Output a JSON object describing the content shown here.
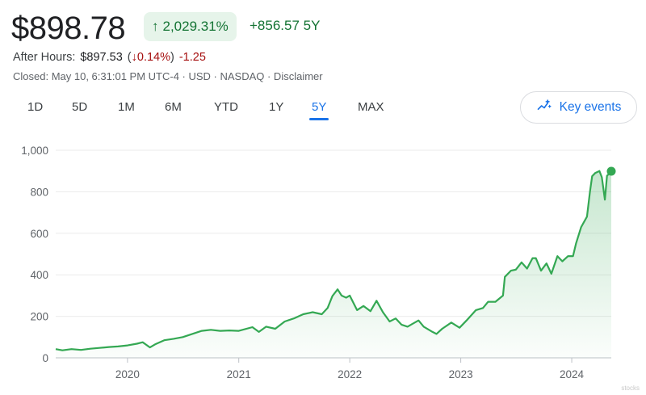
{
  "header": {
    "price": "$898.78",
    "percent_change": "2,029.31%",
    "abs_change": "+856.57",
    "period": "5Y"
  },
  "after_hours": {
    "label": "After Hours:",
    "price": "$897.53",
    "open_paren": "(",
    "pct": "0.14%",
    "close_paren": ")",
    "change": "-1.25"
  },
  "status": {
    "closed_line": "Closed: May 10, 6:31:01 PM UTC-4 · USD · NASDAQ · Disclaimer"
  },
  "range_tabs": [
    {
      "label": "1D",
      "active": false
    },
    {
      "label": "5D",
      "active": false
    },
    {
      "label": "1M",
      "active": false
    },
    {
      "label": "6M",
      "active": false
    },
    {
      "label": "YTD",
      "active": false
    },
    {
      "label": "1Y",
      "active": false
    },
    {
      "label": "5Y",
      "active": true
    },
    {
      "label": "MAX",
      "active": false
    }
  ],
  "key_events": {
    "label": "Key events"
  },
  "colors": {
    "positive": "#137333",
    "negative": "#a50e0e",
    "accent": "#1a73e8",
    "line": "#34a853"
  },
  "icons": [
    "arrow-up-icon",
    "arrow-down-icon",
    "key-events-icon"
  ],
  "watermark": "stocks",
  "chart_data": {
    "type": "area",
    "title": "",
    "xlabel": "",
    "ylabel": "",
    "ylim": [
      0,
      1000
    ],
    "yticks": [
      0,
      200,
      400,
      600,
      800,
      "1,000"
    ],
    "xticks": [
      "2020",
      "2021",
      "2022",
      "2023",
      "2024"
    ],
    "xlim": [
      "2019-05-10",
      "2024-05-10"
    ],
    "grid": true,
    "series": [
      {
        "values": [
          [
            "2019-05-10",
            42
          ],
          [
            "2019-06-01",
            36
          ],
          [
            "2019-07-01",
            42
          ],
          [
            "2019-08-01",
            38
          ],
          [
            "2019-09-01",
            44
          ],
          [
            "2019-10-01",
            48
          ],
          [
            "2019-11-01",
            52
          ],
          [
            "2019-12-01",
            55
          ],
          [
            "2020-01-01",
            60
          ],
          [
            "2020-02-01",
            68
          ],
          [
            "2020-02-20",
            75
          ],
          [
            "2020-03-15",
            50
          ],
          [
            "2020-04-01",
            65
          ],
          [
            "2020-05-01",
            85
          ],
          [
            "2020-06-01",
            92
          ],
          [
            "2020-07-01",
            100
          ],
          [
            "2020-08-01",
            115
          ],
          [
            "2020-09-01",
            130
          ],
          [
            "2020-10-01",
            135
          ],
          [
            "2020-11-01",
            130
          ],
          [
            "2020-12-01",
            132
          ],
          [
            "2021-01-01",
            130
          ],
          [
            "2021-02-15",
            148
          ],
          [
            "2021-03-08",
            125
          ],
          [
            "2021-04-01",
            150
          ],
          [
            "2021-05-01",
            140
          ],
          [
            "2021-06-01",
            175
          ],
          [
            "2021-07-01",
            190
          ],
          [
            "2021-08-01",
            210
          ],
          [
            "2021-09-01",
            220
          ],
          [
            "2021-10-01",
            210
          ],
          [
            "2021-10-20",
            240
          ],
          [
            "2021-11-05",
            298
          ],
          [
            "2021-11-22",
            330
          ],
          [
            "2021-12-05",
            300
          ],
          [
            "2021-12-20",
            290
          ],
          [
            "2022-01-01",
            300
          ],
          [
            "2022-01-25",
            230
          ],
          [
            "2022-02-15",
            250
          ],
          [
            "2022-03-10",
            225
          ],
          [
            "2022-03-30",
            275
          ],
          [
            "2022-04-20",
            220
          ],
          [
            "2022-05-12",
            175
          ],
          [
            "2022-06-01",
            190
          ],
          [
            "2022-06-20",
            160
          ],
          [
            "2022-07-10",
            150
          ],
          [
            "2022-08-15",
            180
          ],
          [
            "2022-09-01",
            150
          ],
          [
            "2022-09-30",
            125
          ],
          [
            "2022-10-13",
            115
          ],
          [
            "2022-11-01",
            140
          ],
          [
            "2022-12-01",
            170
          ],
          [
            "2022-12-28",
            145
          ],
          [
            "2023-01-20",
            180
          ],
          [
            "2023-02-20",
            230
          ],
          [
            "2023-03-15",
            240
          ],
          [
            "2023-04-01",
            270
          ],
          [
            "2023-04-25",
            270
          ],
          [
            "2023-05-20",
            300
          ],
          [
            "2023-05-26",
            390
          ],
          [
            "2023-06-15",
            420
          ],
          [
            "2023-07-01",
            425
          ],
          [
            "2023-07-20",
            460
          ],
          [
            "2023-08-07",
            430
          ],
          [
            "2023-08-25",
            480
          ],
          [
            "2023-09-05",
            480
          ],
          [
            "2023-09-22",
            420
          ],
          [
            "2023-10-10",
            455
          ],
          [
            "2023-10-26",
            405
          ],
          [
            "2023-11-15",
            490
          ],
          [
            "2023-12-01",
            465
          ],
          [
            "2023-12-20",
            490
          ],
          [
            "2024-01-05",
            490
          ],
          [
            "2024-01-15",
            550
          ],
          [
            "2024-02-01",
            630
          ],
          [
            "2024-02-20",
            680
          ],
          [
            "2024-03-01",
            800
          ],
          [
            "2024-03-08",
            875
          ],
          [
            "2024-03-18",
            890
          ],
          [
            "2024-04-01",
            900
          ],
          [
            "2024-04-09",
            870
          ],
          [
            "2024-04-19",
            762
          ],
          [
            "2024-04-26",
            877
          ],
          [
            "2024-05-03",
            887
          ],
          [
            "2024-05-10",
            898.78
          ]
        ]
      }
    ]
  }
}
